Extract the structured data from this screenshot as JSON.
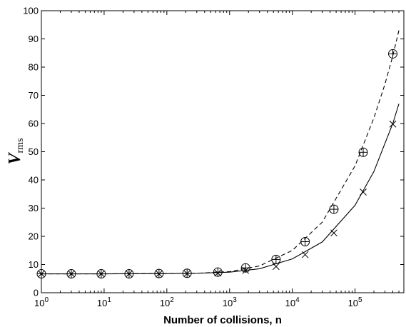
{
  "chart_data": {
    "type": "line",
    "title": "",
    "xlabel": "Number of collisions, n",
    "ylabel": {
      "main": "V",
      "sub": "rms"
    },
    "xscale": "log",
    "xlim": [
      1,
      600000
    ],
    "ylim": [
      0,
      100
    ],
    "xticks": [
      {
        "value": 1,
        "base": "10",
        "exp": "0"
      },
      {
        "value": 10,
        "base": "10",
        "exp": "1"
      },
      {
        "value": 100,
        "base": "10",
        "exp": "2"
      },
      {
        "value": 1000,
        "base": "10",
        "exp": "3"
      },
      {
        "value": 10000,
        "base": "10",
        "exp": "4"
      },
      {
        "value": 100000,
        "base": "10",
        "exp": "5"
      }
    ],
    "yticks": [
      0,
      10,
      20,
      30,
      40,
      50,
      60,
      70,
      80,
      90,
      100
    ],
    "grid": false,
    "legend": "none",
    "series": [
      {
        "style": "dashed-line",
        "x": [
          1,
          10,
          100,
          300,
          1000,
          3000,
          10000,
          30000,
          100000,
          200000,
          300000,
          400000,
          500000
        ],
        "y": [
          6.7,
          6.7,
          6.8,
          6.9,
          7.5,
          9.5,
          15,
          25,
          45,
          62,
          74,
          84,
          93
        ]
      },
      {
        "style": "solid-line",
        "x": [
          1,
          10,
          100,
          300,
          1000,
          3000,
          10000,
          30000,
          100000,
          200000,
          300000,
          400000,
          500000
        ],
        "y": [
          6.7,
          6.7,
          6.8,
          6.9,
          7.3,
          8.5,
          12,
          18,
          31,
          43,
          53,
          60,
          67
        ]
      },
      {
        "style": "circle-plus-markers",
        "x": [
          1,
          3,
          9,
          25,
          75,
          210,
          650,
          1800,
          5500,
          16000,
          46000,
          135000,
          400000
        ],
        "y": [
          6.7,
          6.7,
          6.7,
          6.7,
          6.8,
          6.9,
          7.3,
          8.8,
          11.8,
          18.1,
          29.6,
          49.8,
          84.7
        ]
      },
      {
        "style": "x-markers",
        "x": [
          1,
          3,
          9,
          25,
          75,
          210,
          650,
          1800,
          5500,
          16000,
          46000,
          135000,
          400000
        ],
        "y": [
          6.7,
          6.7,
          6.7,
          6.7,
          6.7,
          6.8,
          7.0,
          7.9,
          9.3,
          13.5,
          21.2,
          35.7,
          59.8
        ]
      }
    ]
  }
}
